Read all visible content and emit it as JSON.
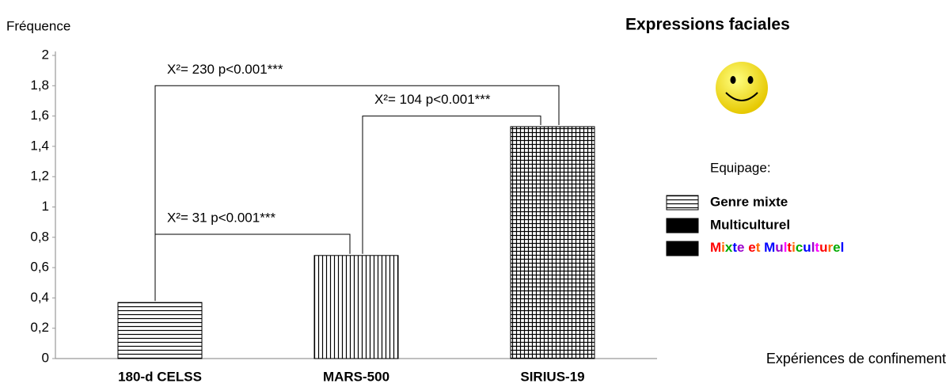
{
  "chart_data": {
    "type": "bar",
    "title": "Expressions faciales",
    "y_label": "Fréquence",
    "x_label": "Expériences de confinement",
    "categories": [
      "180-d CELSS",
      "MARS-500",
      "SIRIUS-19"
    ],
    "values": [
      0.37,
      0.68,
      1.53
    ],
    "patterns": [
      "horizontal",
      "vertical",
      "grid"
    ],
    "ylim": [
      0,
      2
    ],
    "yticks": [
      0,
      {
        "value": 0.2,
        "label": "0,2"
      },
      {
        "value": 0.4,
        "label": "0,4"
      },
      {
        "value": 0.6,
        "label": "0,6"
      },
      {
        "value": 0.8,
        "label": "0,8"
      },
      1,
      {
        "value": 1.2,
        "label": "1,2"
      },
      {
        "value": 1.4,
        "label": "1,4"
      },
      {
        "value": 1.6,
        "label": "1,6"
      },
      {
        "value": 1.8,
        "label": "1,8"
      },
      2
    ],
    "annotations": [
      {
        "text": "X²= 230 p<0.001***",
        "between": [
          "180-d CELSS",
          "SIRIUS-19"
        ],
        "y": 1.8
      },
      {
        "text": "X²= 104 p<0.001***",
        "between": [
          "MARS-500",
          "SIRIUS-19"
        ],
        "y": 1.6
      },
      {
        "text": "X²= 31 p<0.001***",
        "between": [
          "180-d CELSS",
          "MARS-500"
        ],
        "y": 0.82
      }
    ],
    "legend_title": "Equipage:",
    "legend": [
      {
        "name": "Genre mixte",
        "color": "#ff0000",
        "pattern": "horizontal"
      },
      {
        "name": "Multiculturel",
        "color": "#0000ff",
        "pattern": "solid"
      },
      {
        "name": "Mixte et Multiculturel",
        "color": "multi",
        "pattern": "solid"
      }
    ]
  }
}
